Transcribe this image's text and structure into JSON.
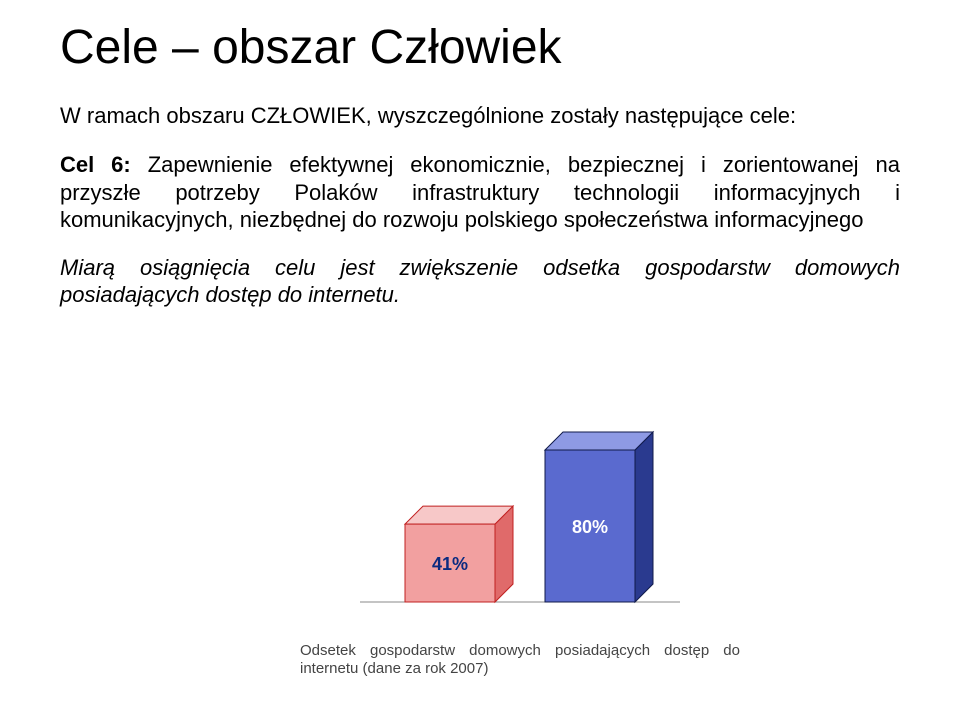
{
  "title": "Cele – obszar Człowiek",
  "intro": "W ramach obszaru CZŁOWIEK, wyszczególnione zostały następujące cele:",
  "goal_label": "Cel 6:",
  "goal_text": " Zapewnienie efektywnej ekonomicznie, bezpiecznej i zorientowanej na przyszłe potrzeby Polaków infrastruktury technologii informacyjnych i komunikacyjnych, niezbędnej do rozwoju polskiego społeczeństwa informacyjnego",
  "measure": "Miarą osiągnięcia celu jest zwiększenie odsetka gospodarstw domowych posiadających dostęp do internetu.",
  "chart": {
    "type": "bar",
    "bars": [
      {
        "label": "41%",
        "value": 41,
        "fill": "#f2a0a0",
        "top_fill": "#f7c8c8",
        "side_fill": "#e06a6a",
        "stroke": "#c02020",
        "label_color": "#0b2b80"
      },
      {
        "label": "80%",
        "value": 80,
        "fill": "#5a6acf",
        "top_fill": "#8e9ae4",
        "side_fill": "#2a3a8f",
        "stroke": "#101a4a",
        "label_color": "#ffffff"
      }
    ],
    "ymax": 100,
    "baseline_color": "#888888",
    "label_fontsize": 18,
    "label_fontweight": "700",
    "background": "#ffffff",
    "caption": "Odsetek gospodarstw domowych posiadających dostęp do internetu (dane za rok 2007)",
    "caption_color": "#444444",
    "caption_fontsize": 15
  }
}
